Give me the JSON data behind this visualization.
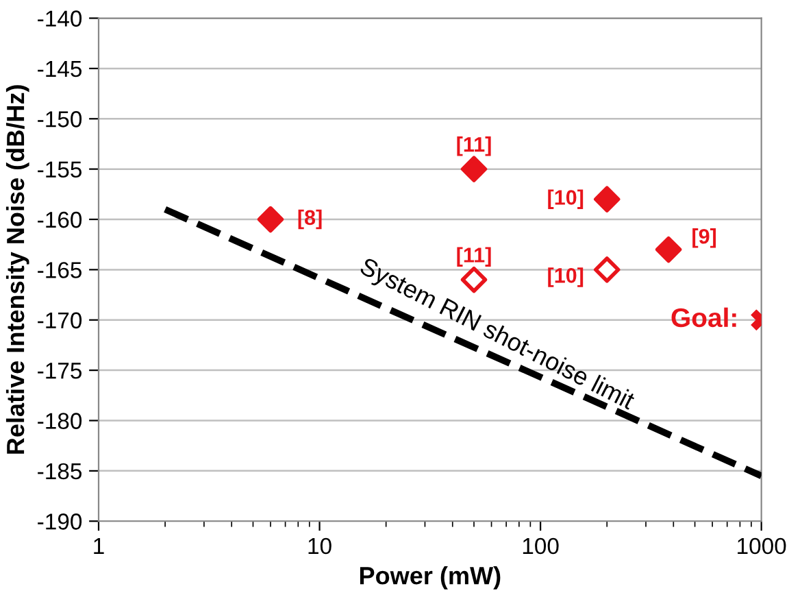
{
  "chart_data": {
    "type": "scatter",
    "xlabel": "Power (mW)",
    "ylabel": "Relative Intensity Noise (dB/Hz)",
    "log": "x",
    "xlim": [
      1,
      1000
    ],
    "xticks": [
      1,
      10,
      100,
      1000
    ],
    "ylim": [
      -190,
      -140
    ],
    "yticks": [
      -190,
      -185,
      -180,
      -175,
      -170,
      -165,
      -160,
      -155,
      -150,
      -145,
      -140
    ],
    "grid": "y",
    "legend": false,
    "series": [
      {
        "marker": "diamond",
        "color": "#e8141b",
        "x": [
          6,
          50,
          200,
          380
        ],
        "values": [
          -160,
          -155,
          -158,
          -163
        ]
      },
      {
        "marker": "diamond",
        "color": "#e8141b",
        "x": [
          50,
          200
        ],
        "values": [
          -166,
          -165
        ]
      },
      {
        "marker": "cross",
        "color": "#e8141b",
        "x": [
          1000
        ],
        "values": [
          -170
        ]
      },
      {
        "type": "line",
        "line_style": "dashed",
        "marker": "none",
        "color": "#000000",
        "x": [
          2,
          1000
        ],
        "values": [
          -159,
          -185.5
        ]
      }
    ],
    "annotations": [
      {
        "text": "[8]",
        "x": 6,
        "y": -160
      },
      {
        "text": "[11]",
        "x": 50,
        "y": -155
      },
      {
        "text": "[10]",
        "x": 200,
        "y": -158
      },
      {
        "text": "[9]",
        "x": 380,
        "y": -163
      },
      {
        "text": "[11]",
        "x": 50,
        "y": -166
      },
      {
        "text": "[10]",
        "x": 200,
        "y": -165
      },
      {
        "text": "Goal:",
        "x": 1000,
        "y": -170
      },
      "System RIN shot-noise limit"
    ]
  }
}
